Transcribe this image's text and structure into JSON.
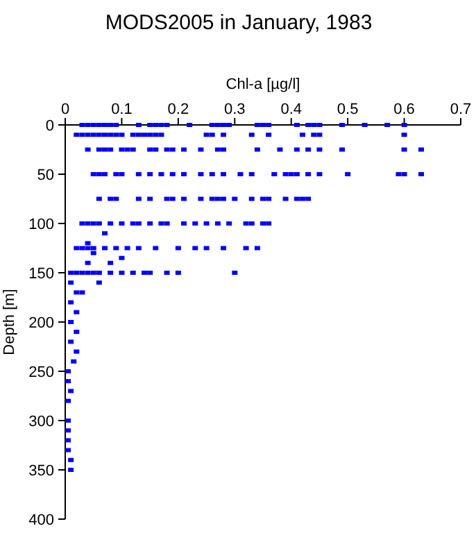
{
  "chart_data": {
    "type": "scatter",
    "title": "MODS2005 in January, 1983",
    "xlabel": "Chl-a [µg/l]",
    "ylabel": "Depth [m]",
    "xlim": [
      0,
      0.7
    ],
    "xticks": [
      0,
      0.1,
      0.2,
      0.3,
      0.4,
      0.5,
      0.6,
      0.7
    ],
    "ylim": [
      400,
      0
    ],
    "yticks": [
      0,
      50,
      100,
      150,
      200,
      250,
      300,
      350,
      400
    ],
    "marker": "square",
    "grid": false,
    "series": [
      {
        "color": "#0000ff",
        "x": [
          0.03,
          0.04,
          0.05,
          0.06,
          0.07,
          0.08,
          0.09,
          0.13,
          0.15,
          0.16,
          0.17,
          0.18,
          0.22,
          0.26,
          0.27,
          0.28,
          0.29,
          0.34,
          0.35,
          0.36,
          0.41,
          0.43,
          0.44,
          0.45,
          0.49,
          0.53,
          0.57,
          0.6,
          0.02,
          0.03,
          0.04,
          0.05,
          0.06,
          0.07,
          0.08,
          0.09,
          0.1,
          0.12,
          0.13,
          0.14,
          0.15,
          0.16,
          0.17,
          0.25,
          0.26,
          0.28,
          0.33,
          0.36,
          0.42,
          0.44,
          0.45,
          0.6,
          0.04,
          0.06,
          0.07,
          0.08,
          0.1,
          0.11,
          0.12,
          0.15,
          0.16,
          0.18,
          0.19,
          0.21,
          0.24,
          0.27,
          0.28,
          0.34,
          0.38,
          0.41,
          0.43,
          0.45,
          0.49,
          0.6,
          0.63,
          0.05,
          0.06,
          0.07,
          0.09,
          0.1,
          0.13,
          0.15,
          0.17,
          0.19,
          0.21,
          0.24,
          0.26,
          0.28,
          0.31,
          0.33,
          0.37,
          0.39,
          0.4,
          0.41,
          0.43,
          0.45,
          0.5,
          0.59,
          0.6,
          0.63,
          0.06,
          0.08,
          0.09,
          0.13,
          0.15,
          0.18,
          0.19,
          0.21,
          0.24,
          0.26,
          0.27,
          0.28,
          0.3,
          0.33,
          0.35,
          0.36,
          0.39,
          0.41,
          0.42,
          0.43,
          0.03,
          0.04,
          0.05,
          0.06,
          0.08,
          0.1,
          0.12,
          0.13,
          0.15,
          0.17,
          0.18,
          0.21,
          0.23,
          0.25,
          0.27,
          0.29,
          0.32,
          0.33,
          0.35,
          0.36,
          0.02,
          0.03,
          0.04,
          0.05,
          0.07,
          0.09,
          0.11,
          0.13,
          0.16,
          0.2,
          0.23,
          0.25,
          0.28,
          0.32,
          0.34,
          0.01,
          0.02,
          0.03,
          0.04,
          0.05,
          0.06,
          0.08,
          0.1,
          0.12,
          0.14,
          0.15,
          0.18,
          0.2,
          0.3,
          0.01,
          0.02,
          0.01,
          0.02,
          0.01,
          0.02,
          0.01,
          0.015,
          0.005,
          0.005,
          0.01,
          0.005,
          0.005,
          0.005,
          0.005,
          0.005,
          0.01,
          0.01,
          0.04,
          0.06,
          0.03,
          0.02,
          0.05,
          0.08,
          0.1,
          0.07,
          0.04
        ],
        "values": [
          0,
          0,
          0,
          0,
          0,
          0,
          0,
          0,
          0,
          0,
          0,
          0,
          0,
          0,
          0,
          0,
          0,
          0,
          0,
          0,
          0,
          0,
          0,
          0,
          0,
          0,
          0,
          0,
          10,
          10,
          10,
          10,
          10,
          10,
          10,
          10,
          10,
          10,
          10,
          10,
          10,
          10,
          10,
          10,
          10,
          10,
          10,
          10,
          10,
          10,
          10,
          10,
          25,
          25,
          25,
          25,
          25,
          25,
          25,
          25,
          25,
          25,
          25,
          25,
          25,
          25,
          25,
          25,
          25,
          25,
          25,
          25,
          25,
          25,
          25,
          50,
          50,
          50,
          50,
          50,
          50,
          50,
          50,
          50,
          50,
          50,
          50,
          50,
          50,
          50,
          50,
          50,
          50,
          50,
          50,
          50,
          50,
          50,
          50,
          50,
          75,
          75,
          75,
          75,
          75,
          75,
          75,
          75,
          75,
          75,
          75,
          75,
          75,
          75,
          75,
          75,
          75,
          75,
          75,
          75,
          100,
          100,
          100,
          100,
          100,
          100,
          100,
          100,
          100,
          100,
          100,
          100,
          100,
          100,
          100,
          100,
          100,
          100,
          100,
          100,
          125,
          125,
          125,
          125,
          125,
          125,
          125,
          125,
          125,
          125,
          125,
          125,
          125,
          125,
          125,
          150,
          150,
          150,
          150,
          150,
          150,
          150,
          150,
          150,
          150,
          150,
          150,
          150,
          150,
          160,
          170,
          180,
          190,
          200,
          210,
          220,
          240,
          250,
          260,
          270,
          280,
          300,
          310,
          320,
          330,
          340,
          350,
          140,
          160,
          170,
          230,
          130,
          140,
          135,
          110,
          120
        ]
      }
    ]
  }
}
